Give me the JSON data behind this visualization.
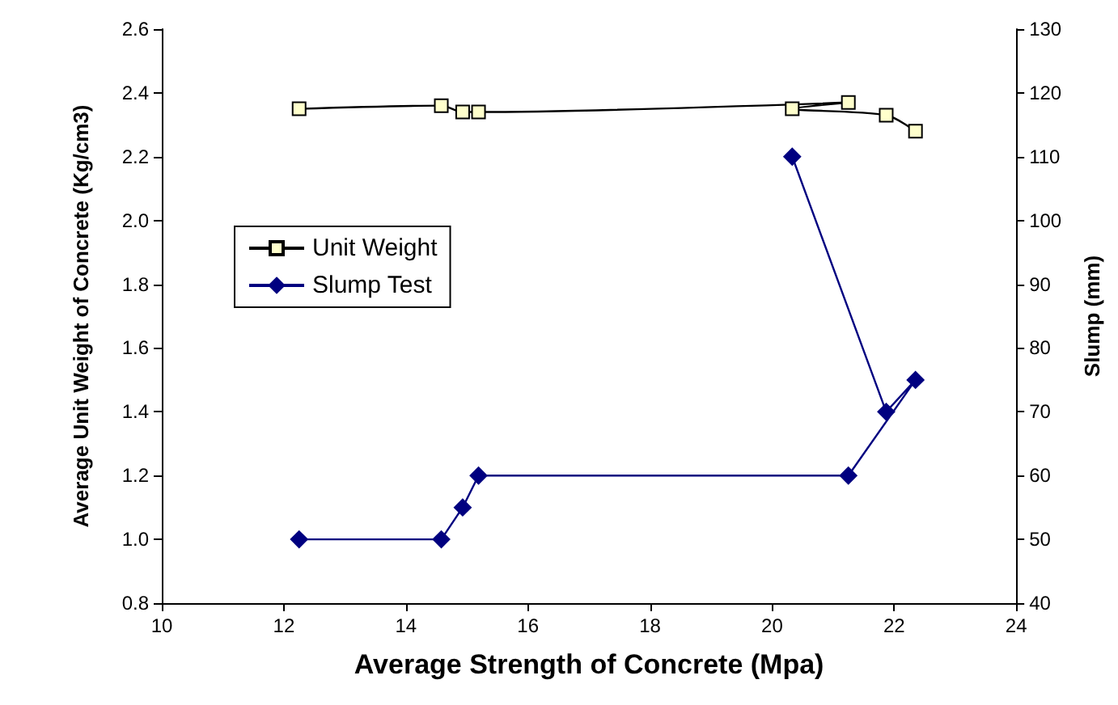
{
  "chart_data": {
    "type": "line",
    "xlabel": "Average Strength of Concrete (Mpa)",
    "ylabel": "Average Unit Weight of Concrete (Kg/cm3)",
    "y2label": "Slump (mm)",
    "series": [
      {
        "name": "Unit Weight",
        "color": "#000000",
        "marker": "square",
        "x": [
          12.25,
          14.58,
          14.93,
          15.19,
          21.25,
          20.33,
          21.87,
          22.35
        ],
        "values": [
          2.35,
          2.36,
          2.34,
          2.34,
          2.37,
          2.35,
          2.33,
          2.28
        ]
      },
      {
        "name": "Slump Test",
        "color": "#000080",
        "marker": "diamond",
        "axis": "y2",
        "x": [
          12.25,
          14.58,
          14.93,
          15.19,
          21.25,
          22.35,
          21.87,
          20.33
        ],
        "values": [
          50,
          50,
          55,
          60,
          60,
          75,
          70,
          110
        ]
      }
    ],
    "xlim": [
      10,
      24
    ],
    "xticks": [
      10,
      12,
      14,
      16,
      18,
      20,
      22,
      24
    ],
    "ylim": [
      0.8,
      2.6
    ],
    "yticks": [
      0.8,
      {
        "value": 1,
        "label": "1.0"
      },
      1.2,
      1.4,
      1.6,
      1.8,
      {
        "value": 2,
        "label": "2.0"
      },
      2.2,
      2.4,
      2.6
    ],
    "y2lim": [
      40,
      130
    ],
    "y2ticks": [
      40,
      50,
      60,
      70,
      80,
      90,
      100,
      110,
      120,
      130
    ],
    "grid": false,
    "legend": "left"
  }
}
